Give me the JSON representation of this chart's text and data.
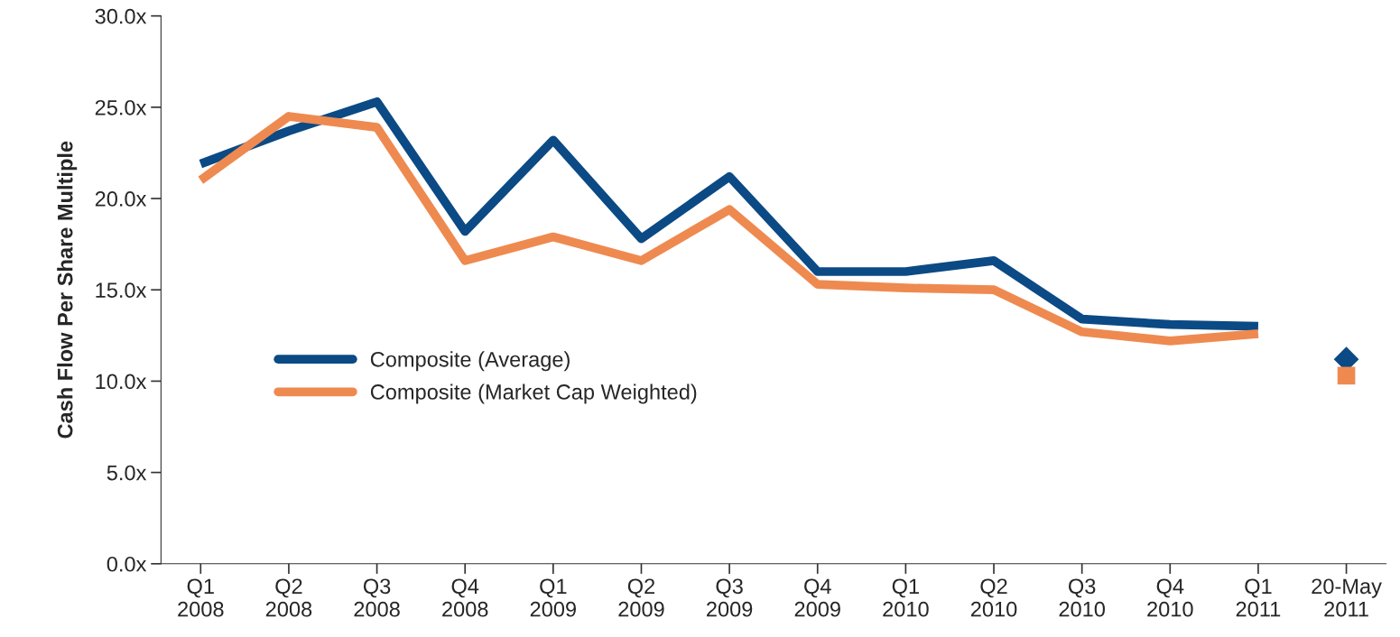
{
  "chart_data": {
    "type": "line",
    "ylabel": "Cash Flow Per Share Multiple",
    "categories": [
      "Q1\n2008",
      "Q2\n2008",
      "Q3\n2008",
      "Q4\n2008",
      "Q1\n2009",
      "Q2\n2009",
      "Q3\n2009",
      "Q4\n2009",
      "Q1\n2010",
      "Q2\n2010",
      "Q3\n2010",
      "Q4\n2010",
      "Q1\n2011",
      "20-May\n2011"
    ],
    "series": [
      {
        "name": "Composite (Average)",
        "color": "#0b4a84",
        "values": [
          21.9,
          23.7,
          25.3,
          18.2,
          23.2,
          17.8,
          21.2,
          16.0,
          16.0,
          16.6,
          13.4,
          13.1,
          13.0,
          null
        ]
      },
      {
        "name": "Composite (Market Cap Weighted)",
        "color": "#ee8a50",
        "values": [
          21.0,
          24.5,
          23.9,
          16.6,
          17.9,
          16.6,
          19.4,
          15.3,
          15.1,
          15.0,
          12.7,
          12.2,
          12.6,
          null
        ]
      },
      {
        "type": "scatter",
        "marker": "diamond",
        "color": "#0b4a84",
        "values": [
          null,
          null,
          null,
          null,
          null,
          null,
          null,
          null,
          null,
          null,
          null,
          null,
          null,
          11.2
        ]
      },
      {
        "type": "scatter",
        "marker": "square",
        "color": "#ee8a50",
        "values": [
          null,
          null,
          null,
          null,
          null,
          null,
          null,
          null,
          null,
          null,
          null,
          null,
          null,
          10.3
        ]
      }
    ],
    "ylim": [
      0,
      30
    ],
    "yticks": [
      {
        "value": 0,
        "label": "0.0x"
      },
      {
        "value": 5,
        "label": "5.0x"
      },
      {
        "value": 10,
        "label": "10.0x"
      },
      {
        "value": 15,
        "label": "15.0x"
      },
      {
        "value": 20,
        "label": "20.0x"
      },
      {
        "value": 25,
        "label": "25.0x"
      },
      {
        "value": 30,
        "label": "30.0x"
      }
    ],
    "grid": false,
    "legend": "left"
  }
}
